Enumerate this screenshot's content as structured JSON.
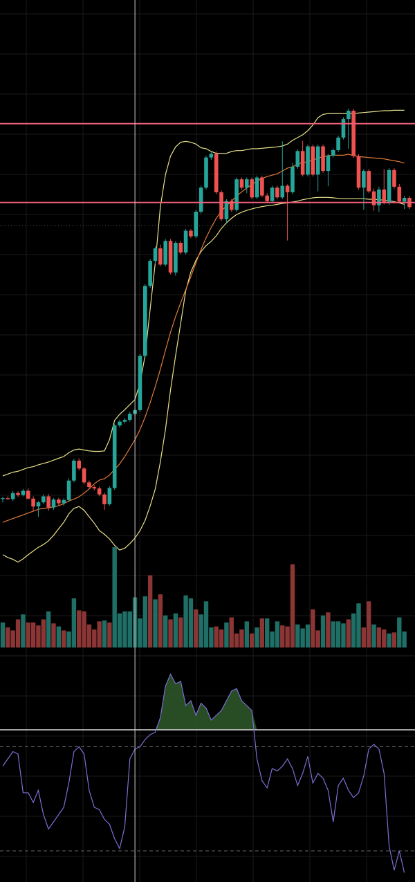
{
  "theme": {
    "background": "#000000",
    "grid": "#1a1a1a",
    "candle_up": "#26a69a",
    "candle_down": "#ef5350",
    "volume_up": "#1f6f66",
    "volume_down": "#8b3535",
    "bollinger_band": "#e8e28a",
    "bollinger_basis": "#e07b3c",
    "horizontal_line": "#f0607a",
    "crosshair": "#cfcfcf",
    "rsi_line": "#7e6fd6",
    "rsi_fill": "#2f5a2c"
  },
  "chart_data": [
    {
      "type": "candlestick",
      "panel": "price",
      "price_range": [
        0,
        100
      ],
      "grid": true,
      "horizontal_levels": [
        86,
        69
      ],
      "dotted_level": 64,
      "crosshair_index": 26,
      "candles": [
        {
          "o": 5.0,
          "h": 5.5,
          "l": 4.3,
          "c": 5.2
        },
        {
          "o": 5.2,
          "h": 5.6,
          "l": 4.8,
          "c": 5.0
        },
        {
          "o": 5.0,
          "h": 6.8,
          "l": 4.6,
          "c": 6.3
        },
        {
          "o": 6.3,
          "h": 6.7,
          "l": 5.5,
          "c": 5.9
        },
        {
          "o": 5.9,
          "h": 7.2,
          "l": 5.6,
          "c": 6.8
        },
        {
          "o": 6.8,
          "h": 7.3,
          "l": 4.9,
          "c": 5.1
        },
        {
          "o": 5.1,
          "h": 5.6,
          "l": 2.3,
          "c": 3.4
        },
        {
          "o": 3.4,
          "h": 4.6,
          "l": 1.2,
          "c": 4.3
        },
        {
          "o": 4.3,
          "h": 6.0,
          "l": 3.9,
          "c": 5.6
        },
        {
          "o": 5.6,
          "h": 6.1,
          "l": 2.5,
          "c": 3.2
        },
        {
          "o": 3.2,
          "h": 5.2,
          "l": 2.7,
          "c": 4.9
        },
        {
          "o": 4.9,
          "h": 5.3,
          "l": 3.7,
          "c": 4.1
        },
        {
          "o": 4.1,
          "h": 5.2,
          "l": 3.6,
          "c": 4.8
        },
        {
          "o": 4.8,
          "h": 9.5,
          "l": 4.4,
          "c": 9.0
        },
        {
          "o": 9.0,
          "h": 13.7,
          "l": 8.6,
          "c": 13.3
        },
        {
          "o": 13.3,
          "h": 13.8,
          "l": 11.2,
          "c": 11.6
        },
        {
          "o": 11.6,
          "h": 11.9,
          "l": 8.2,
          "c": 8.6
        },
        {
          "o": 8.6,
          "h": 9.0,
          "l": 7.2,
          "c": 7.6
        },
        {
          "o": 7.6,
          "h": 8.0,
          "l": 6.9,
          "c": 7.3
        },
        {
          "o": 7.3,
          "h": 7.7,
          "l": 5.6,
          "c": 6.0
        },
        {
          "o": 6.0,
          "h": 6.4,
          "l": 2.7,
          "c": 3.9
        },
        {
          "o": 3.9,
          "h": 7.8,
          "l": 3.6,
          "c": 7.4
        },
        {
          "o": 7.4,
          "h": 21.3,
          "l": 7.0,
          "c": 20.9
        },
        {
          "o": 20.9,
          "h": 22.1,
          "l": 20.5,
          "c": 21.7
        },
        {
          "o": 21.7,
          "h": 22.5,
          "l": 21.3,
          "c": 22.1
        },
        {
          "o": 22.1,
          "h": 23.8,
          "l": 21.7,
          "c": 23.4
        },
        {
          "o": 23.4,
          "h": 24.6,
          "l": 23.0,
          "c": 24.2
        },
        {
          "o": 24.2,
          "h": 36.3,
          "l": 23.8,
          "c": 35.9
        },
        {
          "o": 35.9,
          "h": 51.4,
          "l": 35.5,
          "c": 51.0
        },
        {
          "o": 51.0,
          "h": 56.8,
          "l": 50.6,
          "c": 56.4
        },
        {
          "o": 56.4,
          "h": 59.5,
          "l": 55.7,
          "c": 59.1
        },
        {
          "o": 59.1,
          "h": 59.9,
          "l": 55.2,
          "c": 55.6
        },
        {
          "o": 55.6,
          "h": 61.1,
          "l": 55.2,
          "c": 60.7
        },
        {
          "o": 60.7,
          "h": 61.1,
          "l": 53.5,
          "c": 53.9
        },
        {
          "o": 53.9,
          "h": 60.7,
          "l": 53.2,
          "c": 60.3
        },
        {
          "o": 60.3,
          "h": 60.7,
          "l": 57.8,
          "c": 58.2
        },
        {
          "o": 58.2,
          "h": 63.3,
          "l": 57.8,
          "c": 62.9
        },
        {
          "o": 62.9,
          "h": 63.3,
          "l": 61.3,
          "c": 61.7
        },
        {
          "o": 61.7,
          "h": 67.4,
          "l": 61.3,
          "c": 67.0
        },
        {
          "o": 67.0,
          "h": 72.6,
          "l": 66.6,
          "c": 72.2
        },
        {
          "o": 72.2,
          "h": 79.1,
          "l": 71.8,
          "c": 78.7
        },
        {
          "o": 78.7,
          "h": 79.9,
          "l": 78.2,
          "c": 79.5
        },
        {
          "o": 79.5,
          "h": 80.0,
          "l": 70.8,
          "c": 71.2
        },
        {
          "o": 71.2,
          "h": 71.6,
          "l": 65.0,
          "c": 65.4
        },
        {
          "o": 65.4,
          "h": 69.7,
          "l": 64.6,
          "c": 69.3
        },
        {
          "o": 69.3,
          "h": 69.7,
          "l": 67.0,
          "c": 67.4
        },
        {
          "o": 67.4,
          "h": 74.4,
          "l": 67.0,
          "c": 74.0
        },
        {
          "o": 74.0,
          "h": 74.4,
          "l": 71.8,
          "c": 72.2
        },
        {
          "o": 72.2,
          "h": 74.4,
          "l": 71.0,
          "c": 74.0
        },
        {
          "o": 74.0,
          "h": 74.4,
          "l": 69.7,
          "c": 70.1
        },
        {
          "o": 70.1,
          "h": 74.8,
          "l": 69.7,
          "c": 74.4
        },
        {
          "o": 74.4,
          "h": 74.8,
          "l": 70.1,
          "c": 70.5
        },
        {
          "o": 70.5,
          "h": 71.0,
          "l": 68.9,
          "c": 69.3
        },
        {
          "o": 69.3,
          "h": 72.6,
          "l": 68.9,
          "c": 72.2
        },
        {
          "o": 72.2,
          "h": 72.6,
          "l": 69.7,
          "c": 70.1
        },
        {
          "o": 70.1,
          "h": 82.2,
          "l": 69.7,
          "c": 72.6
        },
        {
          "o": 72.6,
          "h": 72.9,
          "l": 60.8,
          "c": 71.2
        },
        {
          "o": 71.2,
          "h": 77.5,
          "l": 70.8,
          "c": 76.7
        },
        {
          "o": 76.7,
          "h": 80.5,
          "l": 76.3,
          "c": 80.1
        },
        {
          "o": 80.1,
          "h": 82.3,
          "l": 74.6,
          "c": 75.0
        },
        {
          "o": 75.0,
          "h": 81.5,
          "l": 74.6,
          "c": 81.1
        },
        {
          "o": 81.1,
          "h": 81.5,
          "l": 74.6,
          "c": 75.0
        },
        {
          "o": 75.0,
          "h": 81.5,
          "l": 71.4,
          "c": 81.1
        },
        {
          "o": 81.1,
          "h": 81.5,
          "l": 75.4,
          "c": 75.8
        },
        {
          "o": 75.8,
          "h": 79.5,
          "l": 72.5,
          "c": 79.1
        },
        {
          "o": 79.1,
          "h": 80.7,
          "l": 78.7,
          "c": 80.3
        },
        {
          "o": 80.3,
          "h": 83.4,
          "l": 79.9,
          "c": 83.0
        },
        {
          "o": 83.0,
          "h": 87.4,
          "l": 82.6,
          "c": 87.0
        },
        {
          "o": 87.0,
          "h": 89.2,
          "l": 80.6,
          "c": 88.8
        },
        {
          "o": 88.8,
          "h": 89.2,
          "l": 78.6,
          "c": 79.0
        },
        {
          "o": 79.0,
          "h": 79.4,
          "l": 71.8,
          "c": 72.2
        },
        {
          "o": 72.2,
          "h": 76.2,
          "l": 67.4,
          "c": 75.8
        },
        {
          "o": 75.8,
          "h": 76.2,
          "l": 71.0,
          "c": 71.4
        },
        {
          "o": 71.4,
          "h": 72.0,
          "l": 67.2,
          "c": 68.4
        },
        {
          "o": 68.4,
          "h": 72.4,
          "l": 67.0,
          "c": 71.8
        },
        {
          "o": 71.8,
          "h": 76.2,
          "l": 68.6,
          "c": 68.9
        },
        {
          "o": 68.9,
          "h": 76.4,
          "l": 68.5,
          "c": 76.0
        },
        {
          "o": 76.0,
          "h": 76.4,
          "l": 72.0,
          "c": 72.4
        },
        {
          "o": 72.4,
          "h": 73.0,
          "l": 68.8,
          "c": 69.2
        },
        {
          "o": 69.2,
          "h": 70.4,
          "l": 67.6,
          "c": 70.0
        },
        {
          "o": 70.0,
          "h": 70.4,
          "l": 67.6,
          "c": 68.0
        }
      ],
      "bollinger": {
        "upper": [
          10.0,
          10.4,
          10.8,
          11.0,
          11.4,
          11.8,
          12.0,
          12.4,
          12.7,
          13.0,
          13.4,
          13.8,
          14.2,
          15.0,
          15.6,
          15.8,
          15.6,
          15.4,
          15.3,
          15.3,
          15.4,
          17.8,
          22.0,
          23.3,
          24.3,
          25.4,
          26.5,
          30.0,
          36.0,
          46.0,
          56.0,
          68.0,
          75.0,
          79.0,
          81.0,
          82.0,
          82.2,
          82.0,
          81.6,
          80.8,
          80.6,
          80.0,
          79.6,
          79.6,
          79.6,
          80.0,
          80.2,
          80.2,
          80.4,
          80.6,
          80.6,
          80.7,
          80.8,
          80.9,
          81.0,
          81.2,
          81.6,
          82.4,
          83.0,
          83.6,
          84.5,
          85.7,
          87.3,
          88.0,
          88.2,
          88.2,
          88.2,
          88.2,
          88.2,
          88.2,
          88.3,
          88.4,
          88.5,
          88.6,
          88.7,
          88.8,
          88.8,
          88.9,
          88.9,
          88.9
        ],
        "basis": [
          0.0,
          0.4,
          0.8,
          1.2,
          1.6,
          2.0,
          2.4,
          2.8,
          3.0,
          3.1,
          3.3,
          3.6,
          4.0,
          4.6,
          5.0,
          5.5,
          6.3,
          7.2,
          8.3,
          9.1,
          9.4,
          10.2,
          11.4,
          12.6,
          14.2,
          16.0,
          17.8,
          20.0,
          22.7,
          25.8,
          29.3,
          33.0,
          37.1,
          41.0,
          44.4,
          47.4,
          50.2,
          53.0,
          56.0,
          58.8,
          61.4,
          63.6,
          65.6,
          67.1,
          68.3,
          69.3,
          70.4,
          71.3,
          72.1,
          72.9,
          73.6,
          74.2,
          74.6,
          74.9,
          75.2,
          75.8,
          76.4,
          76.7,
          77.3,
          77.6,
          77.8,
          78.1,
          78.6,
          78.9,
          79.1,
          79.2,
          79.2,
          79.2,
          79.4,
          79.1,
          78.9,
          78.8,
          78.7,
          78.6,
          78.5,
          78.4,
          78.2,
          78.0,
          77.8,
          77.5
        ],
        "lower": [
          -7.0,
          -7.6,
          -8.0,
          -8.6,
          -7.9,
          -7.0,
          -6.2,
          -5.4,
          -4.8,
          -4.0,
          -2.8,
          -1.4,
          0.0,
          1.8,
          3.0,
          3.4,
          2.6,
          1.2,
          -0.2,
          -1.8,
          -2.6,
          -3.6,
          -5.0,
          -6.0,
          -5.6,
          -4.6,
          -3.4,
          -1.8,
          0.4,
          3.5,
          7.2,
          13.0,
          20.0,
          28.5,
          36.0,
          43.0,
          50.0,
          54.0,
          56.5,
          58.4,
          59.7,
          60.6,
          61.8,
          63.4,
          64.6,
          65.6,
          66.4,
          66.9,
          67.3,
          67.6,
          67.9,
          68.1,
          68.3,
          68.4,
          68.6,
          68.8,
          68.9,
          69.1,
          69.3,
          69.6,
          69.8,
          70.0,
          70.1,
          70.1,
          70.1,
          70.0,
          69.9,
          69.8,
          69.8,
          69.8,
          69.8,
          69.8,
          69.7,
          69.7,
          69.6,
          69.5,
          69.4,
          69.2,
          68.9,
          68.6
        ]
      }
    },
    {
      "type": "bar",
      "panel": "volume",
      "ylim": [
        0,
        100
      ],
      "values": [
        25,
        20,
        17,
        28,
        33,
        25,
        25,
        22,
        28,
        36,
        24,
        21,
        17,
        16,
        49,
        37,
        36,
        23,
        18,
        26,
        27,
        25,
        100,
        34,
        36,
        36,
        50,
        29,
        51,
        72,
        48,
        53,
        32,
        28,
        34,
        30,
        52,
        49,
        38,
        33,
        46,
        20,
        21,
        18,
        25,
        30,
        14,
        18,
        26,
        14,
        20,
        29,
        29,
        16,
        26,
        22,
        21,
        83,
        23,
        19,
        23,
        38,
        17,
        32,
        35,
        26,
        26,
        24,
        28,
        34,
        44,
        20,
        46,
        23,
        20,
        18,
        14,
        15,
        30,
        16
      ],
      "up": [
        true,
        false,
        false,
        false,
        true,
        false,
        false,
        false,
        false,
        true,
        false,
        true,
        false,
        true,
        true,
        false,
        false,
        false,
        false,
        false,
        true,
        false,
        true,
        true,
        true,
        true,
        true,
        true,
        true,
        false,
        true,
        false,
        true,
        false,
        true,
        false,
        true,
        true,
        false,
        true,
        true,
        true,
        false,
        false,
        true,
        false,
        false,
        false,
        true,
        false,
        true,
        false,
        true,
        true,
        true,
        false,
        false,
        false,
        true,
        true,
        true,
        false,
        false,
        true,
        false,
        true,
        true,
        true,
        false,
        true,
        true,
        false,
        false,
        true,
        false,
        false,
        true,
        false,
        true,
        true
      ]
    },
    {
      "type": "line",
      "panel": "rsi",
      "ylim": [
        0,
        100
      ],
      "threshold": 70,
      "dashed_levels": [
        63,
        20
      ],
      "values": [
        55,
        58,
        61,
        60,
        44,
        44,
        40,
        45,
        35,
        29,
        32,
        35,
        38,
        48,
        61,
        63,
        60,
        45,
        38,
        37,
        33,
        31,
        25,
        21,
        30,
        58,
        62,
        63,
        66,
        68,
        69,
        75,
        88,
        93,
        89,
        90,
        80,
        82,
        76,
        81,
        79,
        74,
        76,
        78,
        82,
        86,
        87,
        82,
        80,
        78,
        58,
        49,
        46,
        54,
        53,
        55,
        58,
        54,
        47,
        52,
        59,
        48,
        52,
        50,
        45,
        32,
        47,
        50,
        45,
        42,
        44,
        51,
        62,
        64,
        62,
        52,
        22,
        12,
        20,
        11
      ]
    }
  ]
}
